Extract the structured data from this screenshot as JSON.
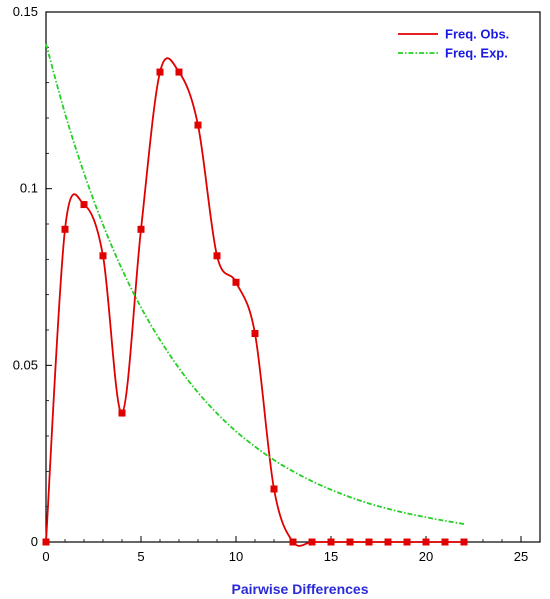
{
  "chart_data": {
    "type": "line",
    "title": "",
    "xlabel": "Pairwise Differences",
    "ylabel": "",
    "xlim": [
      0,
      26
    ],
    "ylim": [
      0,
      0.15
    ],
    "x_ticks": [
      0,
      5,
      10,
      15,
      20,
      25
    ],
    "y_ticks": [
      0,
      0.05,
      0.1,
      0.15
    ],
    "x_tick_labels": [
      "0",
      "5",
      "10",
      "15",
      "20",
      "25"
    ],
    "y_tick_labels": [
      "0",
      "0.05",
      "0.1",
      "0.15"
    ],
    "grid": false,
    "legend_position": "top-right",
    "series": [
      {
        "name": "Freq. Obs.",
        "color": "#e00000",
        "style": "solid",
        "markers": "square",
        "x": [
          0,
          1,
          2,
          3,
          4,
          5,
          6,
          7,
          8,
          9,
          10,
          11,
          12,
          13,
          14,
          15,
          16,
          17,
          18,
          19,
          20,
          21,
          22
        ],
        "y": [
          0,
          0.0885,
          0.0955,
          0.081,
          0.0365,
          0.0885,
          0.133,
          0.133,
          0.118,
          0.081,
          0.0735,
          0.059,
          0.015,
          0,
          0,
          0,
          0,
          0,
          0,
          0,
          0,
          0,
          0
        ]
      },
      {
        "name": "Freq. Exp.",
        "color": "#22d022",
        "style": "dash-dot",
        "markers": "none",
        "x": [
          0,
          1,
          2,
          3,
          4,
          5,
          6,
          7,
          8,
          9,
          10,
          11,
          12,
          13,
          14,
          15,
          16,
          17,
          18,
          19,
          20,
          21,
          22
        ],
        "y": [
          0.141,
          0.1213,
          0.1044,
          0.0898,
          0.0772,
          0.0664,
          0.0572,
          0.0492,
          0.0423,
          0.0364,
          0.0313,
          0.027,
          0.0232,
          0.02,
          0.0172,
          0.0148,
          0.0127,
          0.0109,
          0.0094,
          0.0081,
          0.007,
          0.006,
          0.0051
        ]
      }
    ]
  }
}
